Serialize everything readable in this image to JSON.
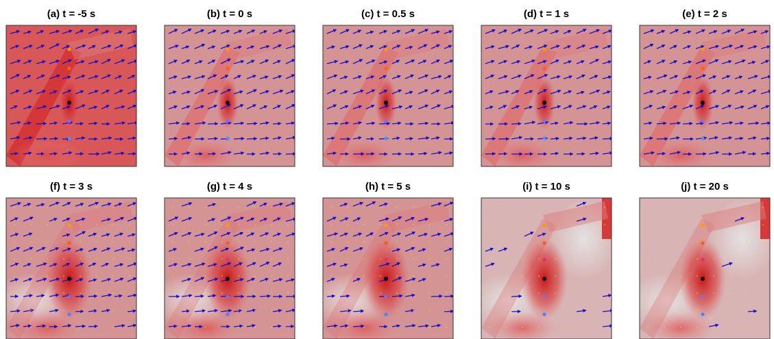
{
  "panels": [
    {
      "title": "(a) t = -5 s"
    },
    {
      "title": "(b) t = 0 s"
    },
    {
      "title": "(c) t = 0.5 s"
    },
    {
      "title": "(d) t = 1 s"
    },
    {
      "title": "(e) t = 2 s"
    },
    {
      "title": "(f) t = 3 s"
    },
    {
      "title": "(g) t = 4 s"
    },
    {
      "title": "(h) t = 5 s"
    },
    {
      "title": "(i) t = 10 s"
    },
    {
      "title": "(j) t = 20 s"
    }
  ]
}
